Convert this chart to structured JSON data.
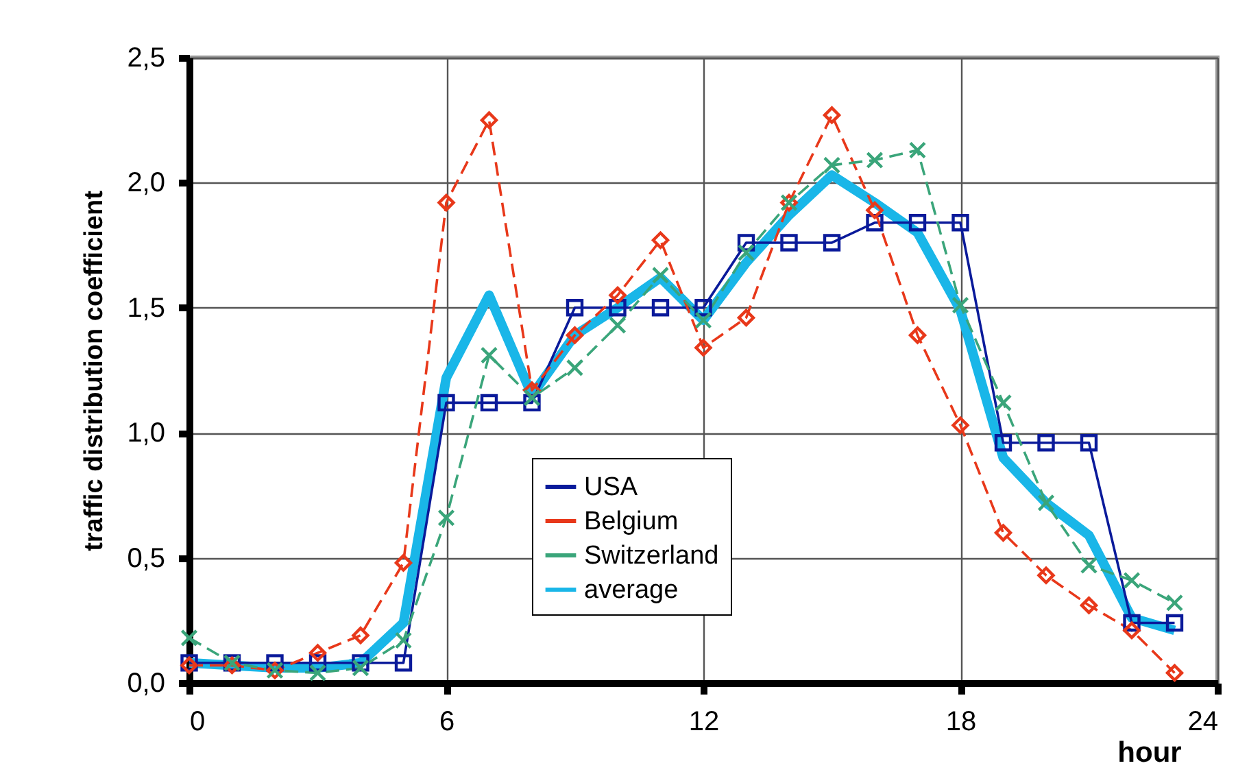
{
  "chart_data": {
    "type": "line",
    "xlabel": "hour",
    "ylabel": "traffic distribution coefficient",
    "x": [
      0,
      1,
      2,
      3,
      4,
      5,
      6,
      7,
      8,
      9,
      10,
      11,
      12,
      13,
      14,
      15,
      16,
      17,
      18,
      19,
      20,
      21,
      22,
      23
    ],
    "series": [
      {
        "name": "average",
        "color": "#19b6e8",
        "marker": "none",
        "line_style": "solid",
        "values": [
          0.08,
          0.07,
          0.06,
          0.06,
          0.08,
          0.24,
          1.22,
          1.55,
          1.15,
          1.39,
          1.5,
          1.62,
          1.45,
          1.68,
          1.87,
          2.03,
          1.92,
          1.8,
          1.49,
          0.9,
          0.72,
          0.59,
          0.26,
          0.21
        ]
      },
      {
        "name": "USA",
        "color": "#0a1a9a",
        "marker": "square",
        "line_style": "solid",
        "values": [
          0.08,
          0.08,
          0.08,
          0.08,
          0.08,
          0.08,
          1.12,
          1.12,
          1.12,
          1.5,
          1.5,
          1.5,
          1.5,
          1.76,
          1.76,
          1.76,
          1.84,
          1.84,
          1.84,
          0.96,
          0.96,
          0.96,
          0.24,
          0.24
        ]
      },
      {
        "name": "Belgium",
        "color": "#e8381a",
        "marker": "diamond",
        "line_style": "dashed",
        "values": [
          0.07,
          0.07,
          0.05,
          0.12,
          0.19,
          0.48,
          1.92,
          2.25,
          1.17,
          1.39,
          1.55,
          1.77,
          1.34,
          1.46,
          1.92,
          2.27,
          1.89,
          1.39,
          1.03,
          0.6,
          0.43,
          0.31,
          0.21,
          0.04
        ]
      },
      {
        "name": "Switzerland",
        "color": "#3aa57a",
        "marker": "cross",
        "line_style": "dashed",
        "values": [
          0.18,
          0.08,
          0.05,
          0.04,
          0.06,
          0.17,
          0.66,
          1.31,
          1.14,
          1.26,
          1.43,
          1.63,
          1.45,
          1.72,
          1.92,
          2.07,
          2.09,
          2.13,
          1.51,
          1.12,
          0.72,
          0.47,
          0.41,
          0.32
        ]
      }
    ],
    "xlim": [
      0,
      24
    ],
    "xticks": [
      0,
      6,
      12,
      18,
      24
    ],
    "ylim": [
      0,
      2.5
    ],
    "yticks": [
      {
        "value": 0,
        "label": "0,0"
      },
      {
        "value": 0.5,
        "label": "0,5"
      },
      {
        "value": 1,
        "label": "1,0"
      },
      {
        "value": 1.5,
        "label": "1,5"
      },
      {
        "value": 2,
        "label": "2,0"
      },
      {
        "value": 2.5,
        "label": "2,5"
      }
    ],
    "grid": true,
    "legend": "bottom"
  }
}
